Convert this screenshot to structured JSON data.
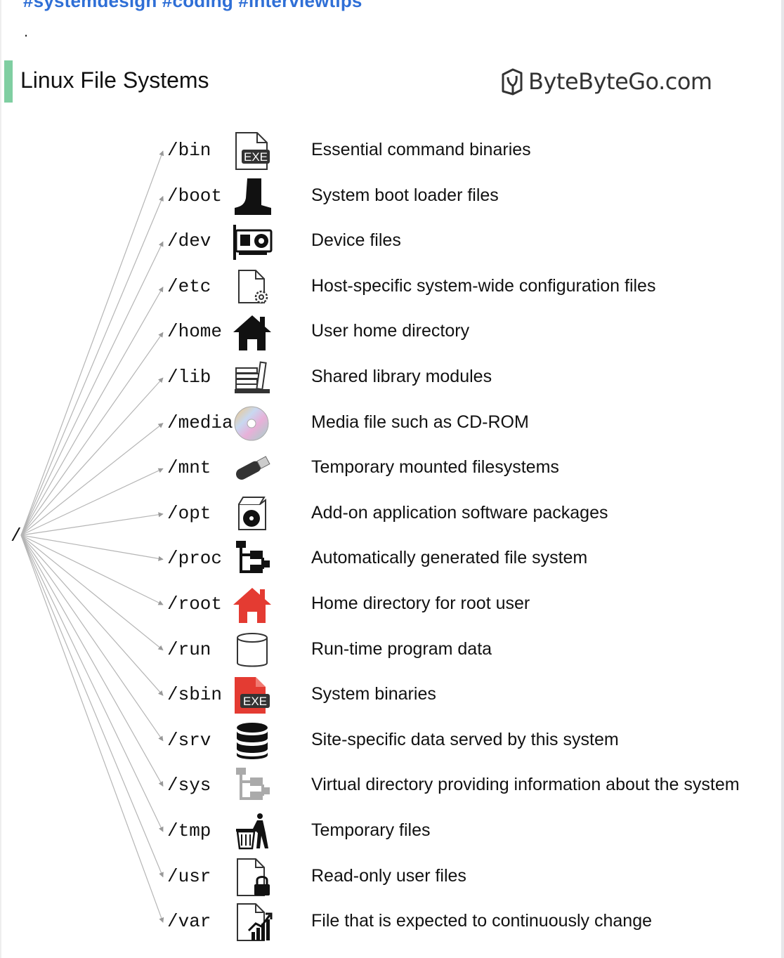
{
  "header": {
    "hashtags": "#systemdesign #coding #interviewtips",
    "dot": ".",
    "title": "Linux File Systems",
    "brand": "ByteByteGo.com"
  },
  "root_label": "/",
  "colors": {
    "accent": "#7fcea1",
    "link": "#2f6fd6",
    "red": "#e43b32"
  },
  "rows": [
    {
      "path": "/bin",
      "icon": "exe-file-icon",
      "description": "Essential command binaries"
    },
    {
      "path": "/boot",
      "icon": "boot-icon",
      "description": "System boot loader files"
    },
    {
      "path": "/dev",
      "icon": "device-card-icon",
      "description": "Device files"
    },
    {
      "path": "/etc",
      "icon": "config-file-icon",
      "description": "Host-specific system-wide configuration files"
    },
    {
      "path": "/home",
      "icon": "home-icon",
      "description": "User home directory"
    },
    {
      "path": "/lib",
      "icon": "library-books-icon",
      "description": "Shared library modules"
    },
    {
      "path": "/media",
      "icon": "cd-rom-icon",
      "description": "Media file such as CD-ROM"
    },
    {
      "path": "/mnt",
      "icon": "usb-drive-icon",
      "description": "Temporary mounted filesystems"
    },
    {
      "path": "/opt",
      "icon": "software-package-icon",
      "description": "Add-on application software packages"
    },
    {
      "path": "/proc",
      "icon": "tree-structure-icon",
      "description": "Automatically generated file system"
    },
    {
      "path": "/root",
      "icon": "root-home-icon",
      "description": "Home directory for root user"
    },
    {
      "path": "/run",
      "icon": "cylinder-icon",
      "description": "Run-time program data"
    },
    {
      "path": "/sbin",
      "icon": "system-exe-icon",
      "description": "System binaries"
    },
    {
      "path": "/srv",
      "icon": "database-icon",
      "description": "Site-specific data served by this system"
    },
    {
      "path": "/sys",
      "icon": "virtual-tree-icon",
      "description": "Virtual directory providing information about the system"
    },
    {
      "path": "/tmp",
      "icon": "trash-icon",
      "description": "Temporary files"
    },
    {
      "path": "/usr",
      "icon": "locked-file-icon",
      "description": "Read-only user files"
    },
    {
      "path": "/var",
      "icon": "chart-file-icon",
      "description": "File that is expected to continuously change"
    }
  ]
}
